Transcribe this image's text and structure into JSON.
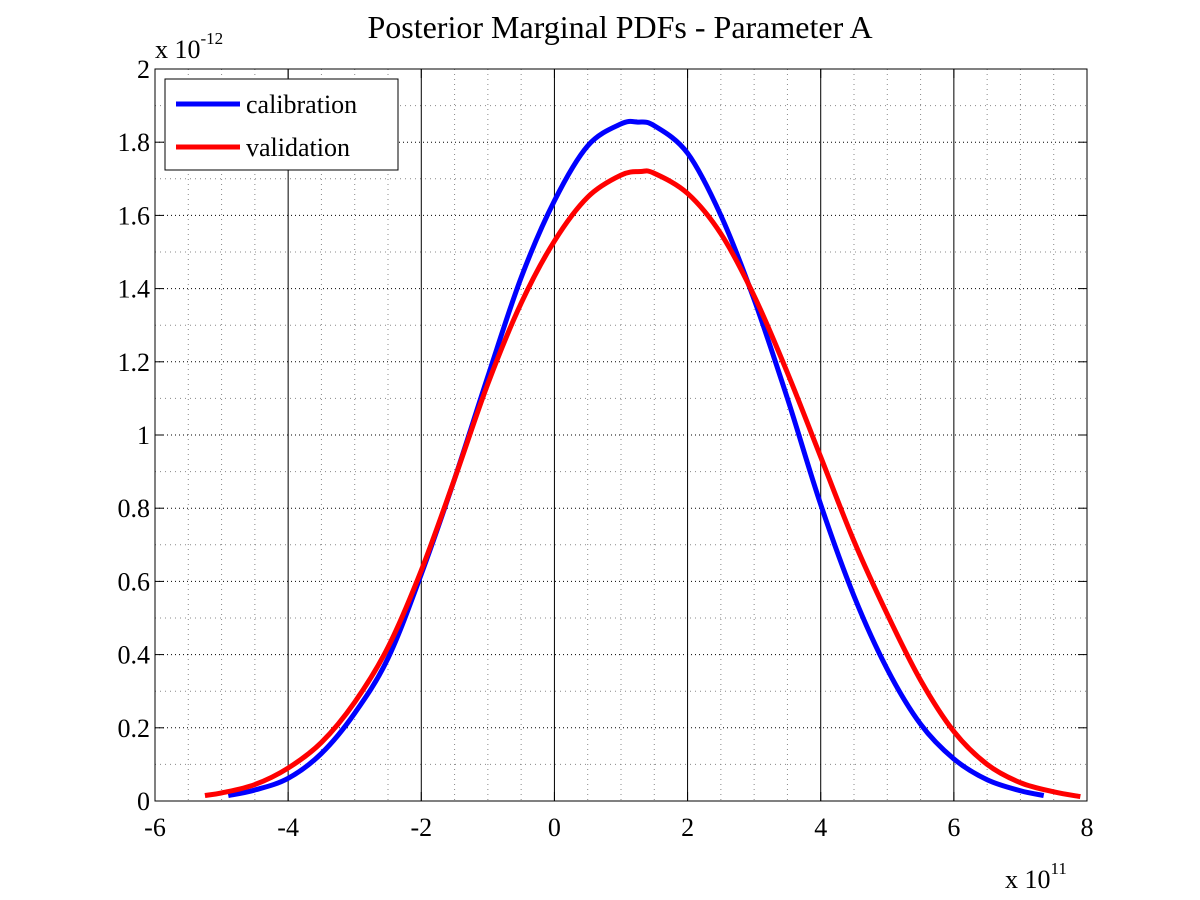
{
  "chart_data": {
    "type": "line",
    "title": "Posterior Marginal PDFs - Parameter A",
    "xlabel": "",
    "ylabel": "",
    "x_multiplier": {
      "base": "x 10",
      "exponent": "11"
    },
    "y_multiplier": {
      "base": "x 10",
      "exponent": "-12"
    },
    "xlim": [
      -6,
      8
    ],
    "ylim": [
      0,
      2
    ],
    "x_ticks": [
      -6,
      -4,
      -2,
      0,
      2,
      4,
      6,
      8
    ],
    "x_tick_labels": [
      "-6",
      "-4",
      "-2",
      "0",
      "2",
      "4",
      "6",
      "8"
    ],
    "y_ticks": [
      0,
      0.2,
      0.4,
      0.6,
      0.8,
      1,
      1.2,
      1.4,
      1.6,
      1.8,
      2
    ],
    "y_tick_labels": [
      "0",
      "0.2",
      "0.4",
      "0.6",
      "0.8",
      "1",
      "1.2",
      "1.4",
      "1.6",
      "1.8",
      "2"
    ],
    "grid": true,
    "legend_position": "top-left",
    "series": [
      {
        "name": "calibration",
        "color": "#0000ff",
        "x": [
          -4.9,
          -4.5,
          -4.0,
          -3.5,
          -3.0,
          -2.5,
          -2.0,
          -1.5,
          -1.0,
          -0.5,
          0.0,
          0.5,
          1.0,
          1.25,
          1.5,
          2.0,
          2.5,
          3.0,
          3.5,
          4.0,
          4.5,
          5.0,
          5.5,
          6.0,
          6.5,
          7.0,
          7.35
        ],
        "y": [
          0.015,
          0.03,
          0.062,
          0.13,
          0.24,
          0.39,
          0.62,
          0.88,
          1.16,
          1.43,
          1.64,
          1.79,
          1.85,
          1.855,
          1.845,
          1.77,
          1.6,
          1.37,
          1.1,
          0.81,
          0.56,
          0.36,
          0.21,
          0.115,
          0.058,
          0.028,
          0.015
        ]
      },
      {
        "name": "validation",
        "color": "#ff0000",
        "x": [
          -5.25,
          -5.0,
          -4.5,
          -4.0,
          -3.5,
          -3.0,
          -2.5,
          -2.0,
          -1.5,
          -1.0,
          -0.5,
          0.0,
          0.5,
          1.0,
          1.3,
          1.5,
          2.0,
          2.5,
          3.0,
          3.5,
          4.0,
          4.5,
          5.0,
          5.5,
          6.0,
          6.5,
          7.0,
          7.5,
          7.9
        ],
        "y": [
          0.015,
          0.022,
          0.045,
          0.09,
          0.16,
          0.27,
          0.42,
          0.63,
          0.88,
          1.14,
          1.36,
          1.53,
          1.65,
          1.71,
          1.72,
          1.715,
          1.66,
          1.55,
          1.38,
          1.17,
          0.94,
          0.71,
          0.51,
          0.33,
          0.19,
          0.1,
          0.05,
          0.025,
          0.012
        ]
      }
    ]
  }
}
